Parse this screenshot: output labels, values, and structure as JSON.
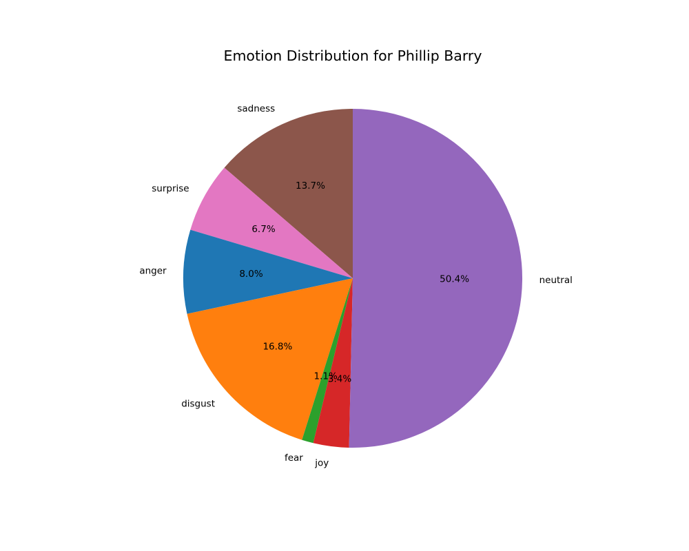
{
  "chart_data": {
    "type": "pie",
    "title": "Emotion Distribution for Phillip Barry",
    "start_angle_deg": 90,
    "direction": "counterclockwise",
    "slices": [
      {
        "label": "sadness",
        "value": 13.7,
        "pct_label": "13.7%",
        "color": "#8c564b"
      },
      {
        "label": "surprise",
        "value": 6.7,
        "pct_label": "6.7%",
        "color": "#e377c2"
      },
      {
        "label": "anger",
        "value": 8.0,
        "pct_label": "8.0%",
        "color": "#1f77b4"
      },
      {
        "label": "disgust",
        "value": 16.8,
        "pct_label": "16.8%",
        "color": "#ff7f0e"
      },
      {
        "label": "fear",
        "value": 1.1,
        "pct_label": "1.1%",
        "color": "#2ca02c"
      },
      {
        "label": "joy",
        "value": 3.4,
        "pct_label": "3.4%",
        "color": "#d62728"
      },
      {
        "label": "neutral",
        "value": 50.4,
        "pct_label": "50.4%",
        "color": "#9467bd"
      }
    ]
  }
}
